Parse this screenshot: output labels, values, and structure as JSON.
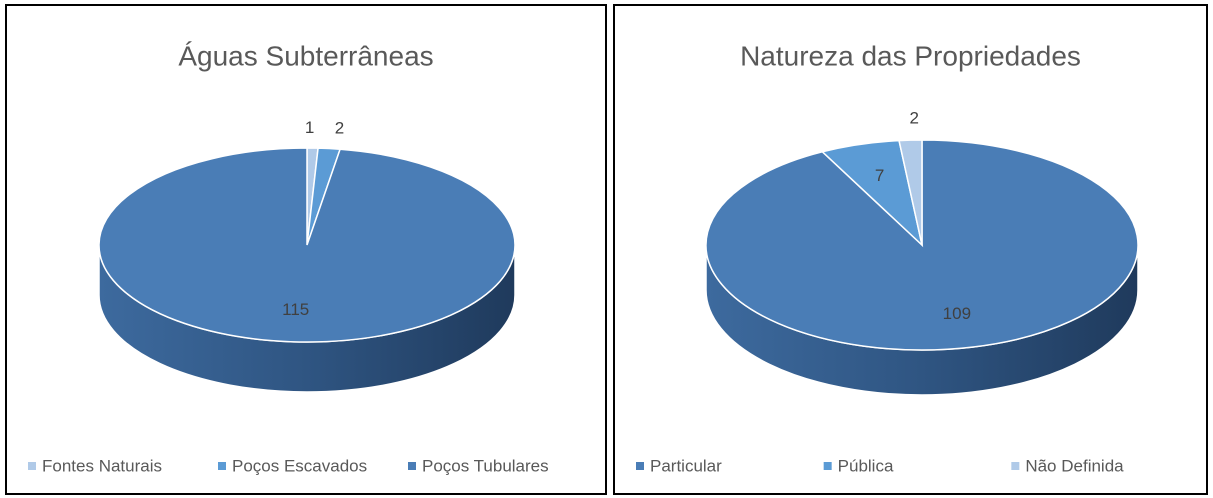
{
  "chart_data": [
    {
      "type": "pie",
      "title": "Águas Subterrâneas",
      "categories": [
        "Fontes Naturais",
        "Poços Escavados",
        "Poços Tubulares"
      ],
      "values": [
        1,
        2,
        115
      ],
      "colors": [
        "#b0cae8",
        "#5b9bd5",
        "#4a7db6"
      ],
      "legend": "bottom"
    },
    {
      "type": "pie",
      "title": "Natureza das Propriedades",
      "categories": [
        "Particular",
        "Pública",
        "Não Definida"
      ],
      "values": [
        109,
        7,
        2
      ],
      "colors": [
        "#4a7db6",
        "#5b9bd5",
        "#b0cae8"
      ],
      "legend": "bottom"
    }
  ]
}
